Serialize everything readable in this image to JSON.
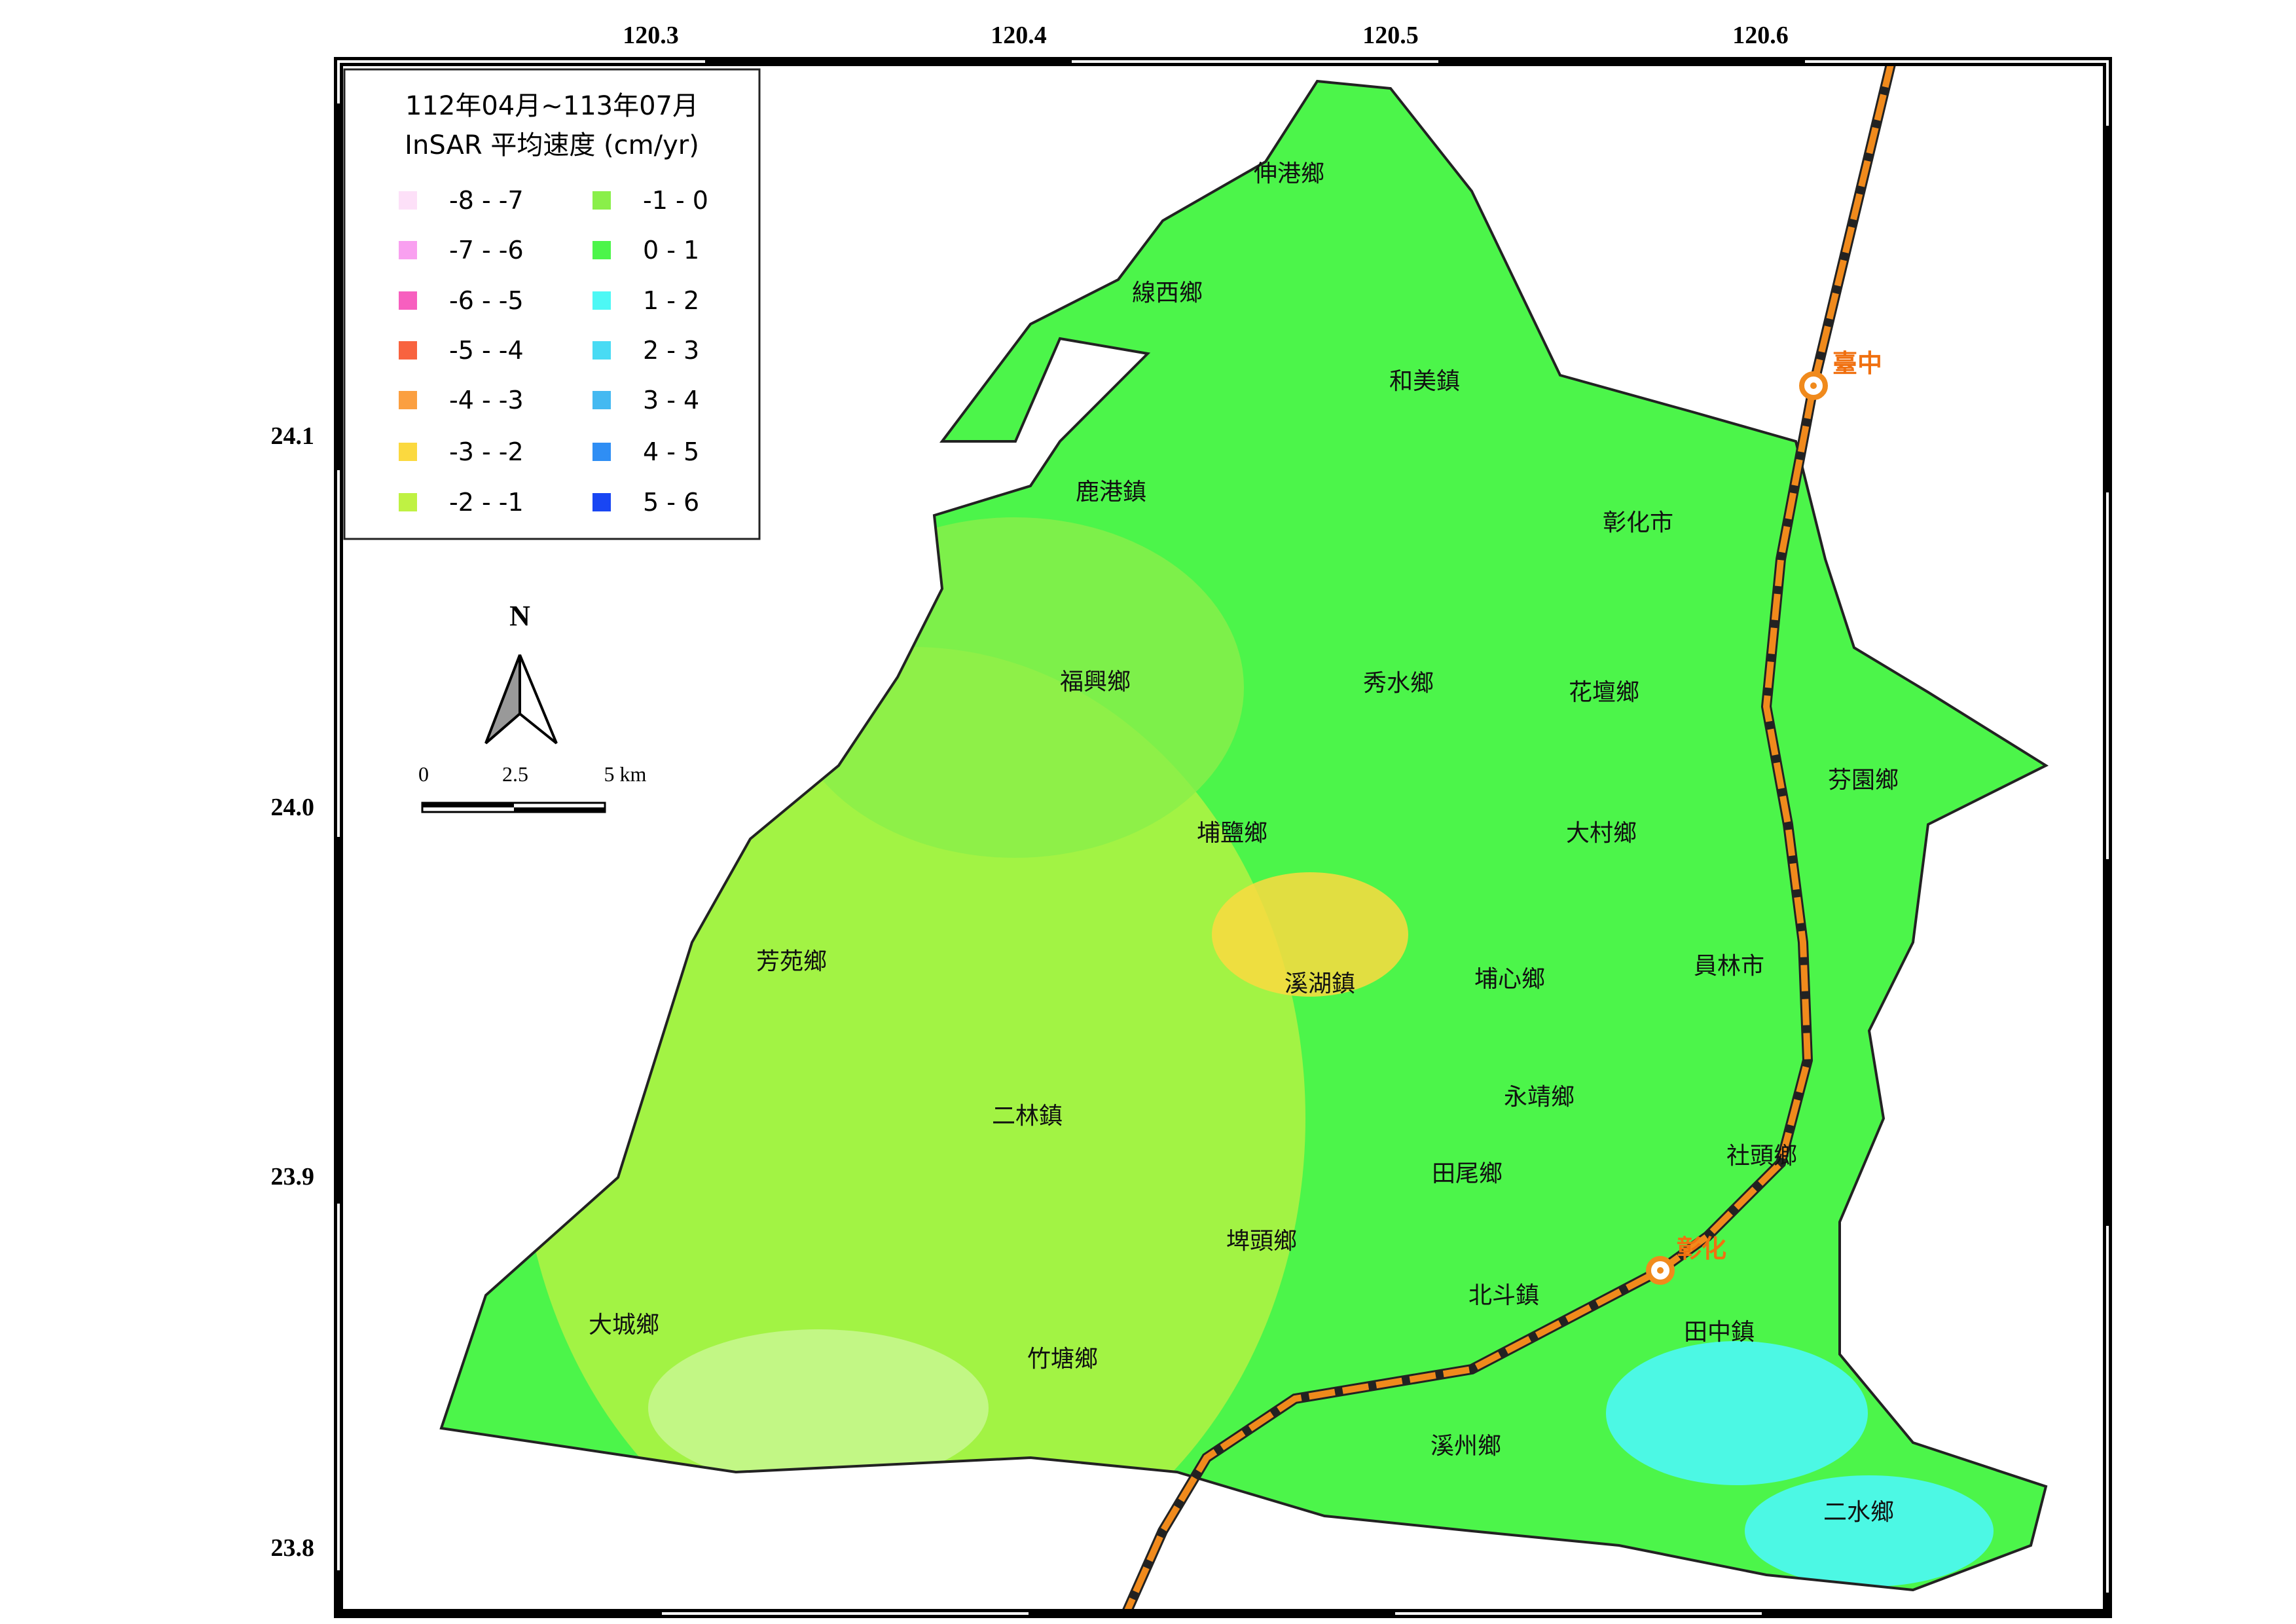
{
  "legend": {
    "title": [
      "112年04月~113年07月",
      "InSAR 平均速度 (cm/yr)"
    ],
    "items": [
      {
        "label": "-8 - -7",
        "color": "#fde0f8"
      },
      {
        "label": "-7 - -6",
        "color": "#f9a0f0"
      },
      {
        "label": "-6 - -5",
        "color": "#f75fbf"
      },
      {
        "label": "-5 - -4",
        "color": "#f8633f"
      },
      {
        "label": "-4 - -3",
        "color": "#fb9f40"
      },
      {
        "label": "-3 - -2",
        "color": "#fbd93f"
      },
      {
        "label": "-2 - -1",
        "color": "#bff243"
      },
      {
        "label": "-1 - 0",
        "color": "#8aef4a"
      },
      {
        "label": "0 - 1",
        "color": "#4cf54a"
      },
      {
        "label": "1 - 2",
        "color": "#4df8f5"
      },
      {
        "label": "2 - 3",
        "color": "#48dbf4"
      },
      {
        "label": "3 - 4",
        "color": "#44b9f1"
      },
      {
        "label": "4 - 5",
        "color": "#2f8ef4"
      },
      {
        "label": "5 - 6",
        "color": "#1946f3"
      }
    ]
  },
  "axes": {
    "top_ticks": [
      "120.3",
      "120.4",
      "120.5",
      "120.6"
    ],
    "left_ticks": [
      "24.1",
      "24.0",
      "23.9",
      "23.8"
    ]
  },
  "north_arrow": "N",
  "scale_bar": [
    "0",
    "2.5",
    "5 km"
  ],
  "townships": [
    "伸港鄉",
    "線西鄉",
    "和美鎮",
    "鹿港鎮",
    "彰化市",
    "福興鄉",
    "秀水鄉",
    "花壇鄉",
    "芬園鄉",
    "埔鹽鄉",
    "大村鄉",
    "芳苑鄉",
    "溪湖鎮",
    "埔心鄉",
    "員林市",
    "二林鎮",
    "永靖鄉",
    "社頭鄉",
    "田尾鄉",
    "埤頭鄉",
    "北斗鎮",
    "田中鎮",
    "大城鄉",
    "竹塘鄉",
    "溪州鄉",
    "二水鄉"
  ],
  "stations": [
    "臺中",
    "彰化"
  ]
}
